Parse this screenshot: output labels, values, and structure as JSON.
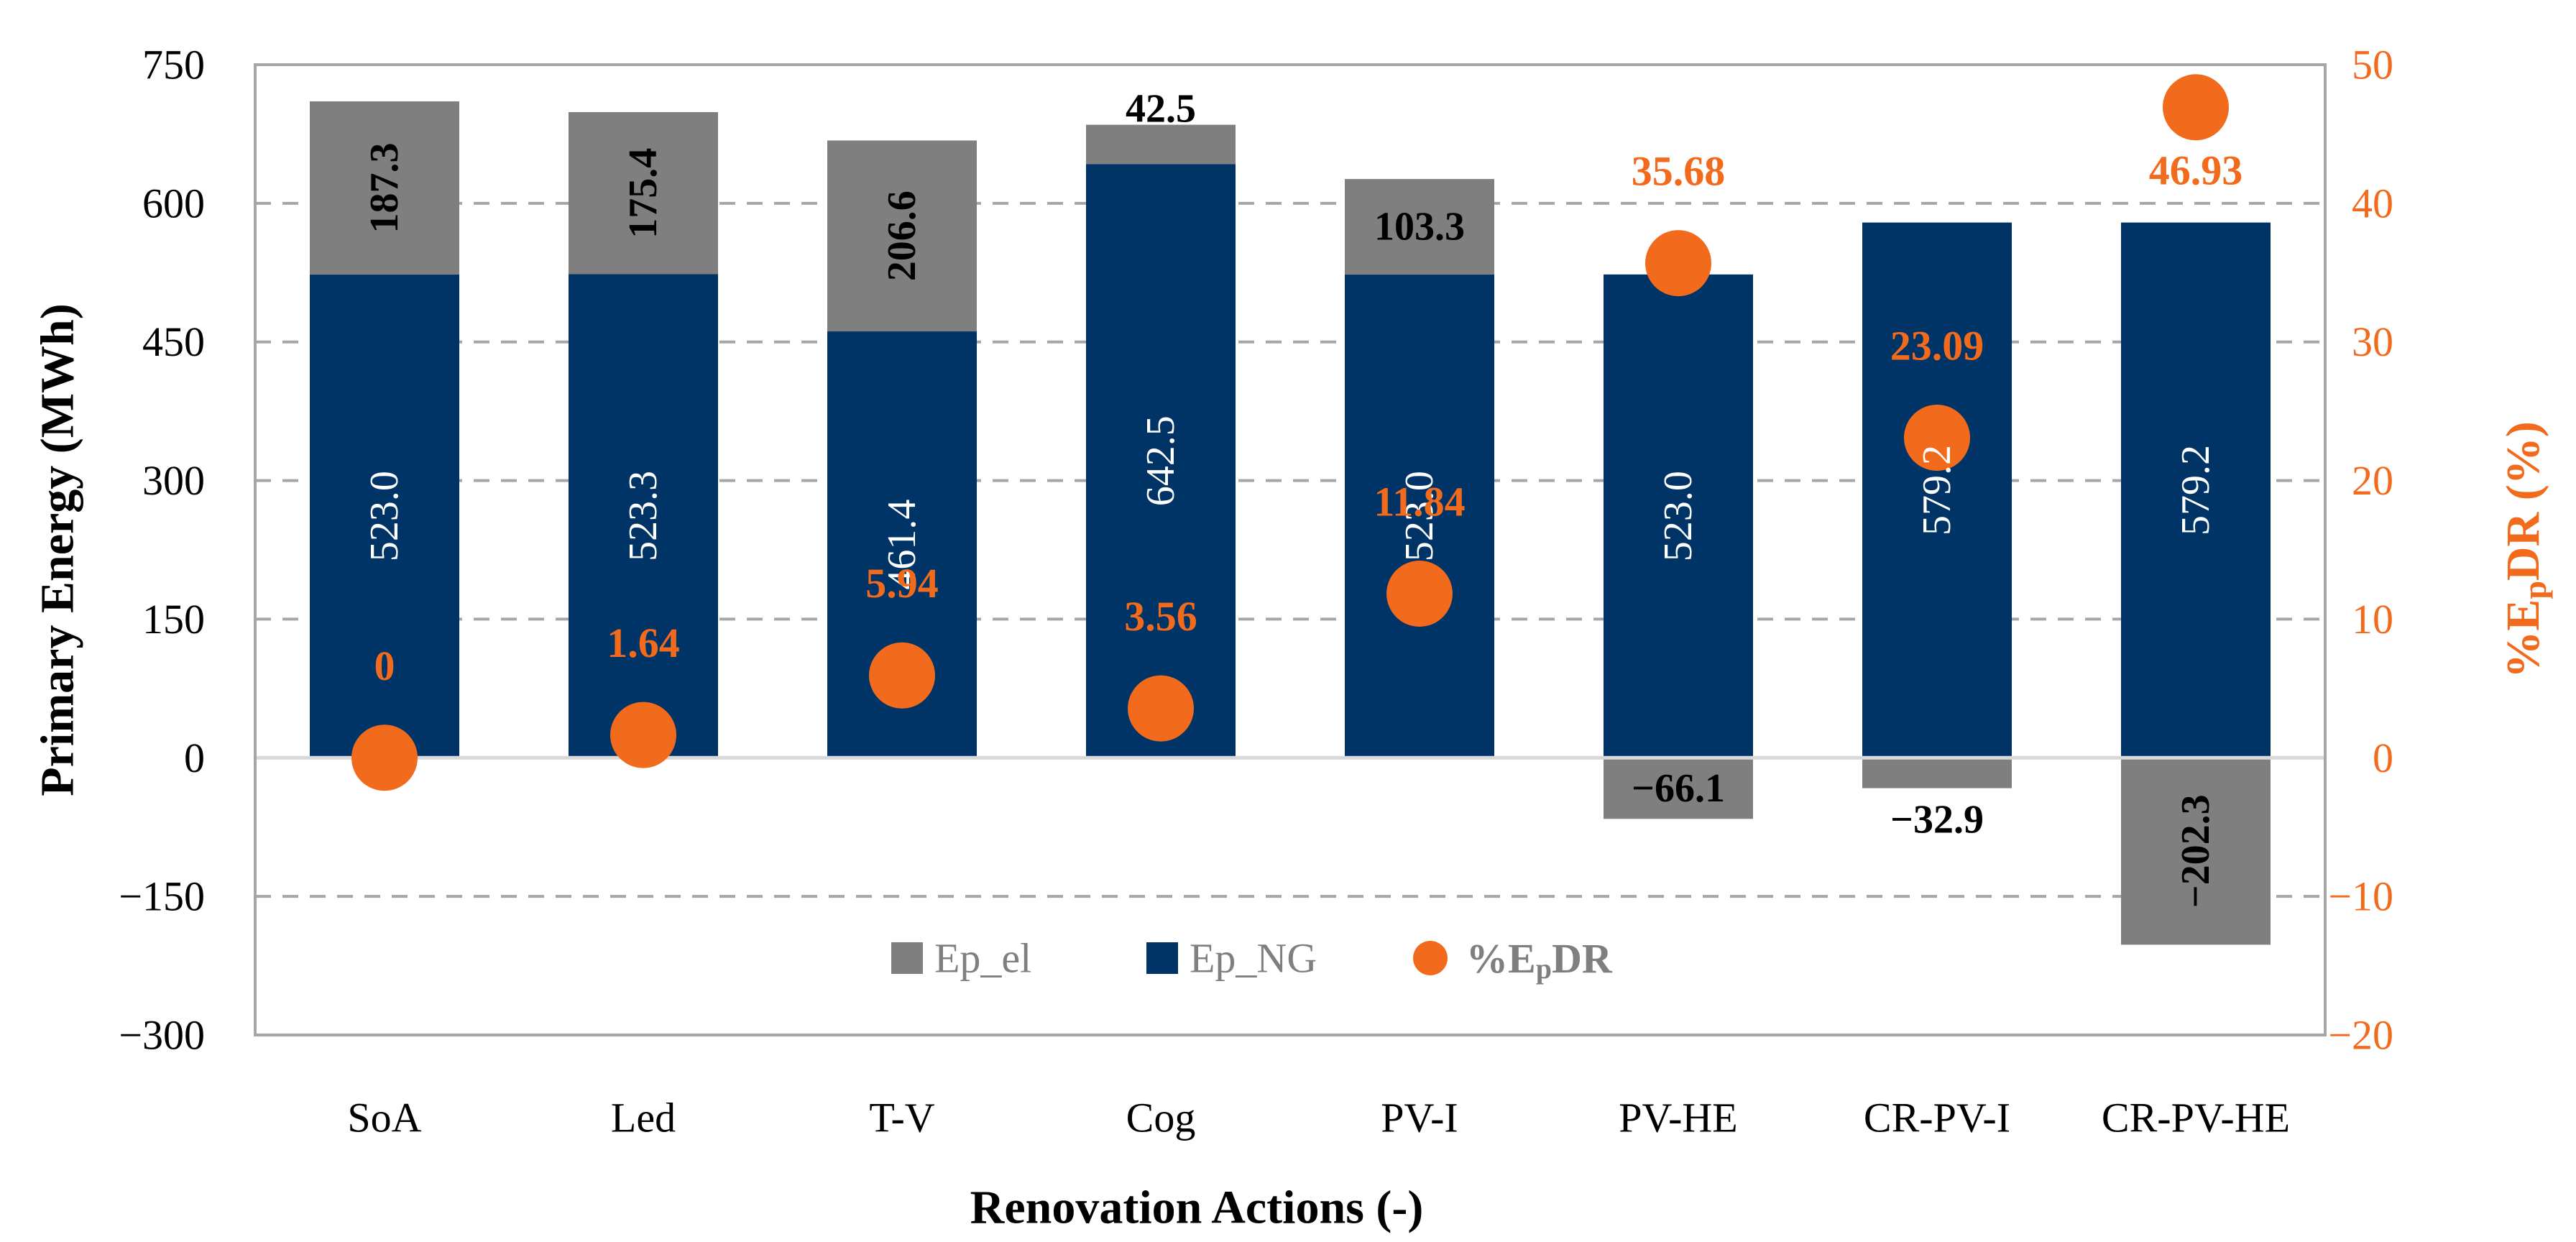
{
  "chart_data": {
    "type": "bar",
    "stacked": true,
    "categories": [
      "SoA",
      "Led",
      "T-V",
      "Cog",
      "PV-I",
      "PV-HE",
      "CR-PV-I",
      "CR-PV-HE"
    ],
    "series": [
      {
        "name": "Ep_NG",
        "color": "#003366",
        "axis": "left",
        "values": [
          523.0,
          523.3,
          461.4,
          642.5,
          523.0,
          523.0,
          579.2,
          579.2
        ],
        "labels": [
          "523.0",
          "523.3",
          "461.4",
          "642.5",
          "523.0",
          "523.0",
          "579.2",
          "579.2"
        ]
      },
      {
        "name": "Ep_el",
        "color": "#7F7F7F",
        "axis": "left",
        "values": [
          187.3,
          175.4,
          206.6,
          42.5,
          103.3,
          -66.1,
          -32.9,
          -202.3
        ],
        "labels": [
          "187.3",
          "175.4",
          "206.6",
          "42.5",
          "103.3",
          "−66.1",
          "−32.9",
          "−202.3"
        ]
      },
      {
        "name": "%EpDR",
        "name_parts": {
          "pre": "%E",
          "sub": "p",
          "post": "DR"
        },
        "type": "scatter",
        "color": "#F26B1D",
        "axis": "right",
        "values": [
          0,
          1.64,
          5.94,
          3.56,
          11.84,
          35.68,
          23.09,
          46.93
        ],
        "labels": [
          "0",
          "1.64",
          "5.94",
          "3.56",
          "11.84",
          "35.68",
          "23.09",
          "46.93"
        ]
      }
    ],
    "xlabel": "Renovation Actions (-)",
    "ylabel": "Primary Energy (MWh)",
    "y2label_parts": {
      "pre": "%E",
      "sub": "p",
      "post": "DR (%)"
    },
    "ylim": [
      -300,
      750
    ],
    "yticks": [
      750,
      600,
      450,
      300,
      150,
      0,
      -150,
      -300
    ],
    "ytick_labels": [
      "750",
      "600",
      "450",
      "300",
      "150",
      "0",
      "−150",
      "−300"
    ],
    "y2lim": [
      -20,
      50
    ],
    "y2ticks": [
      50,
      40,
      30,
      20,
      10,
      0,
      -10,
      -20
    ],
    "y2tick_labels": [
      "50",
      "40",
      "30",
      "20",
      "10",
      "0",
      "−10",
      "−20"
    ],
    "grid": true,
    "legend": "bottom-center",
    "legend_order": [
      "Ep_el",
      "Ep_NG",
      "%EpDR"
    ],
    "colors": {
      "accent": "#F26B1D",
      "navy": "#003366",
      "gray": "#7F7F7F",
      "gridline": "#A6A6A6"
    }
  }
}
